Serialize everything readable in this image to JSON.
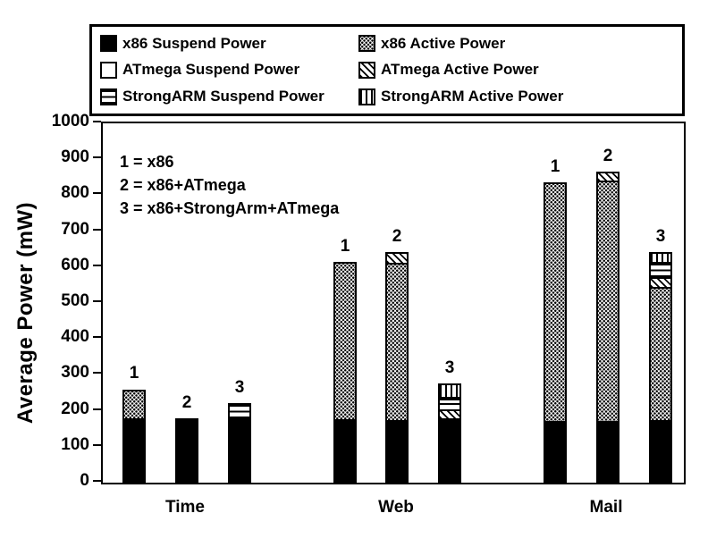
{
  "figure": {
    "background": "#ffffff",
    "ink": "#000000"
  },
  "legend": {
    "items": [
      {
        "key": "x86_suspend",
        "label": "x86 Suspend Power",
        "swatch": "solid-black"
      },
      {
        "key": "x86_active",
        "label": "x86 Active Power",
        "swatch": "dot-stipple"
      },
      {
        "key": "atmega_suspend",
        "label": "ATmega Suspend Power",
        "swatch": "white"
      },
      {
        "key": "atmega_active",
        "label": "ATmega Active Power",
        "swatch": "diagonal-hatch"
      },
      {
        "key": "strongarm_suspend",
        "label": "StrongARM Suspend Power",
        "swatch": "horizontal-lines"
      },
      {
        "key": "strongarm_active",
        "label": "StrongARM Active Power",
        "swatch": "vertical-lines"
      }
    ]
  },
  "annotation": {
    "lines": [
      "1 = x86",
      "2 = x86+ATmega",
      "3 = x86+StrongArm+ATmega"
    ]
  },
  "chart_data": {
    "type": "bar",
    "stacked": true,
    "title": "",
    "xlabel": "",
    "ylabel": "Average Power (mW)",
    "ylim": [
      0,
      1000
    ],
    "yticks": [
      0,
      100,
      200,
      300,
      400,
      500,
      600,
      700,
      800,
      900,
      1000
    ],
    "grid": false,
    "legend_position": "top",
    "categories": [
      "Time",
      "Web",
      "Mail"
    ],
    "bar_number_meaning": {
      "1": "x86",
      "2": "x86+ATmega",
      "3": "x86+StrongArm+ATmega"
    },
    "stack_order": [
      "x86_suspend",
      "x86_active",
      "atmega_active",
      "atmega_suspend",
      "strongarm_suspend",
      "strongarm_active"
    ],
    "groups": [
      {
        "category": "Time",
        "bars": [
          {
            "label": "1",
            "total": 260,
            "segments": {
              "x86_suspend": 178,
              "x86_active": 82
            }
          },
          {
            "label": "2",
            "total": 180,
            "segments": {
              "x86_suspend": 180
            }
          },
          {
            "label": "3",
            "total": 222,
            "segments": {
              "x86_suspend": 180,
              "strongarm_suspend": 42
            }
          }
        ]
      },
      {
        "category": "Web",
        "bars": [
          {
            "label": "1",
            "total": 615,
            "segments": {
              "x86_suspend": 176,
              "x86_active": 439
            }
          },
          {
            "label": "2",
            "total": 642,
            "segments": {
              "x86_suspend": 175,
              "x86_active": 437,
              "atmega_active": 30
            }
          },
          {
            "label": "3",
            "total": 275,
            "segments": {
              "x86_suspend": 180,
              "atmega_active": 25,
              "atmega_suspend": 17,
              "strongarm_suspend": 18,
              "strongarm_active": 35
            }
          }
        ]
      },
      {
        "category": "Mail",
        "bars": [
          {
            "label": "1",
            "total": 837,
            "segments": {
              "x86_suspend": 172,
              "x86_active": 665
            }
          },
          {
            "label": "2",
            "total": 866,
            "segments": {
              "x86_suspend": 172,
              "x86_active": 668,
              "atmega_active": 26
            }
          },
          {
            "label": "3",
            "total": 642,
            "segments": {
              "x86_suspend": 175,
              "x86_active": 371,
              "atmega_active": 25,
              "strongarm_suspend": 44,
              "strongarm_active": 27
            }
          }
        ]
      }
    ]
  }
}
